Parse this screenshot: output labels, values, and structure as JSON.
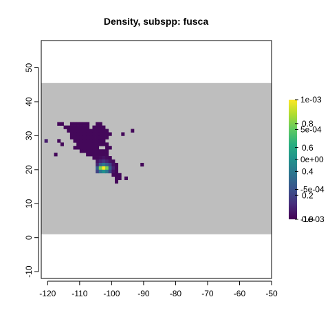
{
  "chart_data": {
    "type": "heatmap",
    "title": "Density, subspp: fusca",
    "xlabel": "",
    "ylabel": "",
    "xlim": [
      -122,
      -50
    ],
    "ylim": [
      -12,
      58
    ],
    "x_ticks": [
      -120,
      -110,
      -100,
      -90,
      -80,
      -70,
      -60,
      -50
    ],
    "y_ticks": [
      -10,
      0,
      10,
      20,
      30,
      40,
      50
    ],
    "x_tick_labels": [
      "-120",
      "-110",
      "-100",
      "-90",
      "-80",
      "-70",
      "-60",
      "-50"
    ],
    "y_tick_labels": [
      "-10",
      "0",
      "10",
      "20",
      "30",
      "40",
      "50"
    ],
    "background_band": {
      "y_range": [
        1,
        45.5
      ],
      "color": "#bebebe"
    },
    "cell_size_deg": 1,
    "cells": [
      [
        -117,
        33,
        2e-05
      ],
      [
        -116,
        33,
        2e-05
      ],
      [
        -113,
        33,
        2e-05
      ],
      [
        -112,
        33,
        2e-05
      ],
      [
        -111,
        33,
        2e-05
      ],
      [
        -110,
        33,
        2e-05
      ],
      [
        -109,
        33,
        2e-05
      ],
      [
        -108,
        33,
        2e-05
      ],
      [
        -105,
        33,
        2e-05
      ],
      [
        -104,
        33,
        2e-05
      ],
      [
        -115,
        32,
        2e-05
      ],
      [
        -114,
        32,
        2e-05
      ],
      [
        -113,
        32,
        2e-05
      ],
      [
        -112,
        32,
        2e-05
      ],
      [
        -111,
        32,
        2e-05
      ],
      [
        -110,
        32,
        2e-05
      ],
      [
        -109,
        32,
        2e-05
      ],
      [
        -108,
        32,
        2e-05
      ],
      [
        -106,
        32,
        2e-05
      ],
      [
        -105,
        32,
        2e-05
      ],
      [
        -104,
        32,
        2e-05
      ],
      [
        -103,
        32,
        2e-05
      ],
      [
        -114,
        31,
        2e-05
      ],
      [
        -113,
        31,
        2e-05
      ],
      [
        -112,
        31,
        2e-05
      ],
      [
        -111,
        31,
        2e-05
      ],
      [
        -110,
        31,
        2e-05
      ],
      [
        -109,
        31,
        2e-05
      ],
      [
        -108,
        31,
        2e-05
      ],
      [
        -107,
        31,
        2e-05
      ],
      [
        -106,
        31,
        2e-05
      ],
      [
        -105,
        31,
        2e-05
      ],
      [
        -104,
        31,
        2e-05
      ],
      [
        -103,
        31,
        2e-05
      ],
      [
        -102,
        31,
        2e-05
      ],
      [
        -94,
        31,
        2e-05
      ],
      [
        -113,
        30,
        2e-05
      ],
      [
        -112,
        30,
        2e-05
      ],
      [
        -111,
        30,
        2e-05
      ],
      [
        -110,
        30,
        2e-05
      ],
      [
        -109,
        30,
        2e-05
      ],
      [
        -108,
        30,
        2e-05
      ],
      [
        -107,
        30,
        2e-05
      ],
      [
        -106,
        30,
        2e-05
      ],
      [
        -105,
        30,
        2e-05
      ],
      [
        -104,
        30,
        2e-05
      ],
      [
        -103,
        30,
        2e-05
      ],
      [
        -102,
        30,
        2e-05
      ],
      [
        -101,
        30,
        2e-05
      ],
      [
        -97,
        30,
        2e-05
      ],
      [
        -113,
        29,
        2e-05
      ],
      [
        -112,
        29,
        2e-05
      ],
      [
        -111,
        29,
        2e-05
      ],
      [
        -110,
        29,
        2e-05
      ],
      [
        -109,
        29,
        2e-05
      ],
      [
        -108,
        29,
        2e-05
      ],
      [
        -107,
        29,
        2e-05
      ],
      [
        -106,
        29,
        2e-05
      ],
      [
        -105,
        29,
        2e-05
      ],
      [
        -104,
        29,
        2e-05
      ],
      [
        -103,
        29,
        2e-05
      ],
      [
        -102,
        29,
        2e-05
      ],
      [
        -121,
        28,
        8e-05
      ],
      [
        -117,
        28,
        2e-05
      ],
      [
        -112,
        28,
        2e-05
      ],
      [
        -111,
        28,
        2e-05
      ],
      [
        -110,
        28,
        2e-05
      ],
      [
        -109,
        28,
        2e-05
      ],
      [
        -108,
        28,
        2e-05
      ],
      [
        -107,
        28,
        2e-05
      ],
      [
        -106,
        28,
        2e-05
      ],
      [
        -105,
        28,
        2e-05
      ],
      [
        -104,
        28,
        2e-05
      ],
      [
        -103,
        28,
        2e-05
      ],
      [
        -116,
        27,
        2e-05
      ],
      [
        -111,
        27,
        2e-05
      ],
      [
        -110,
        27,
        2e-05
      ],
      [
        -109,
        27,
        2e-05
      ],
      [
        -108,
        27,
        2e-05
      ],
      [
        -107,
        27,
        2e-05
      ],
      [
        -106,
        27,
        2e-05
      ],
      [
        -105,
        27,
        2e-05
      ],
      [
        -104,
        27,
        2e-05
      ],
      [
        -103,
        27,
        2e-05
      ],
      [
        -102,
        27,
        2e-05
      ],
      [
        -112,
        26,
        2e-05
      ],
      [
        -111,
        26,
        2e-05
      ],
      [
        -110,
        26,
        2e-05
      ],
      [
        -109,
        26,
        2e-05
      ],
      [
        -108,
        26,
        2e-05
      ],
      [
        -107,
        26,
        2e-05
      ],
      [
        -106,
        26,
        2e-05
      ],
      [
        -105,
        26,
        2e-05
      ],
      [
        -102,
        26,
        2e-05
      ],
      [
        -101,
        26,
        2e-05
      ],
      [
        -110,
        25,
        2e-05
      ],
      [
        -109,
        25,
        2e-05
      ],
      [
        -108,
        25,
        2e-05
      ],
      [
        -107,
        25,
        2e-05
      ],
      [
        -106,
        25,
        2e-05
      ],
      [
        -105,
        25,
        2e-05
      ],
      [
        -104,
        25,
        2e-05
      ],
      [
        -103,
        25,
        2e-05
      ],
      [
        -102,
        25,
        2e-05
      ],
      [
        -118,
        24,
        2e-05
      ],
      [
        -108,
        24,
        2e-05
      ],
      [
        -107,
        24,
        2e-05
      ],
      [
        -106,
        24,
        2e-05
      ],
      [
        -105,
        24,
        2e-05
      ],
      [
        -104,
        24,
        2e-05
      ],
      [
        -103,
        24,
        2e-05
      ],
      [
        -102,
        24,
        2e-05
      ],
      [
        -106,
        23,
        2e-05
      ],
      [
        -105,
        23,
        2e-05
      ],
      [
        -104,
        23,
        3e-05
      ],
      [
        -103,
        23,
        5e-05
      ],
      [
        -102,
        23,
        3e-05
      ],
      [
        -101,
        23,
        2e-05
      ],
      [
        -105,
        22,
        5e-05
      ],
      [
        -104,
        22,
        0.0001
      ],
      [
        -103,
        22,
        0.00015
      ],
      [
        -102,
        22,
        0.0001
      ],
      [
        -101,
        22,
        5e-05
      ],
      [
        -100,
        22,
        3e-05
      ],
      [
        -105,
        21,
        0.0001
      ],
      [
        -104,
        21,
        0.0003
      ],
      [
        -103,
        21,
        0.0004
      ],
      [
        -102,
        21,
        0.0003
      ],
      [
        -101,
        21,
        0.0002
      ],
      [
        -100,
        21,
        5e-05
      ],
      [
        -99,
        21,
        2e-05
      ],
      [
        -91,
        21,
        2e-05
      ],
      [
        -105,
        20,
        0.0003
      ],
      [
        -104,
        20,
        0.0008
      ],
      [
        -103,
        20,
        0.001
      ],
      [
        -102,
        20,
        0.0008
      ],
      [
        -101,
        20,
        0.0003
      ],
      [
        -100,
        20,
        0.0001
      ],
      [
        -99,
        20,
        2e-05
      ],
      [
        -105,
        19,
        0.0002
      ],
      [
        -104,
        19,
        0.0004
      ],
      [
        -103,
        19,
        0.0005
      ],
      [
        -102,
        19,
        0.0004
      ],
      [
        -101,
        19,
        0.0002
      ],
      [
        -100,
        19,
        5e-05
      ],
      [
        -99,
        19,
        2e-05
      ],
      [
        -100,
        18,
        2e-05
      ],
      [
        -99,
        18,
        2e-05
      ],
      [
        -98,
        18,
        2e-05
      ],
      [
        -99,
        17,
        2e-05
      ],
      [
        -98,
        17,
        2e-05
      ],
      [
        -96,
        17,
        2e-05
      ],
      [
        -99,
        16,
        2e-05
      ]
    ],
    "legend": {
      "range": [
        0,
        0.001
      ],
      "colors": [
        "#440154",
        "#472d7b",
        "#3b528b",
        "#2c728e",
        "#21918c",
        "#28ae80",
        "#5ec962",
        "#addc30",
        "#fde725"
      ],
      "labels_a": [
        {
          "label": "1e-03",
          "value": 1
        },
        {
          "label": "5e-04",
          "value": 0.75
        },
        {
          "label": "0e+00",
          "value": 0.5
        },
        {
          "label": "-5e-04",
          "value": 0.25
        },
        {
          "label": "-1e-03",
          "value": 0
        }
      ],
      "labels_b": [
        {
          "label": "0.8",
          "value": 0.8
        },
        {
          "label": "0.6",
          "value": 0.6
        },
        {
          "label": "0.4",
          "value": 0.4
        },
        {
          "label": "0.2",
          "value": 0.2
        },
        {
          "label": "0.0",
          "value": 0
        }
      ]
    }
  }
}
